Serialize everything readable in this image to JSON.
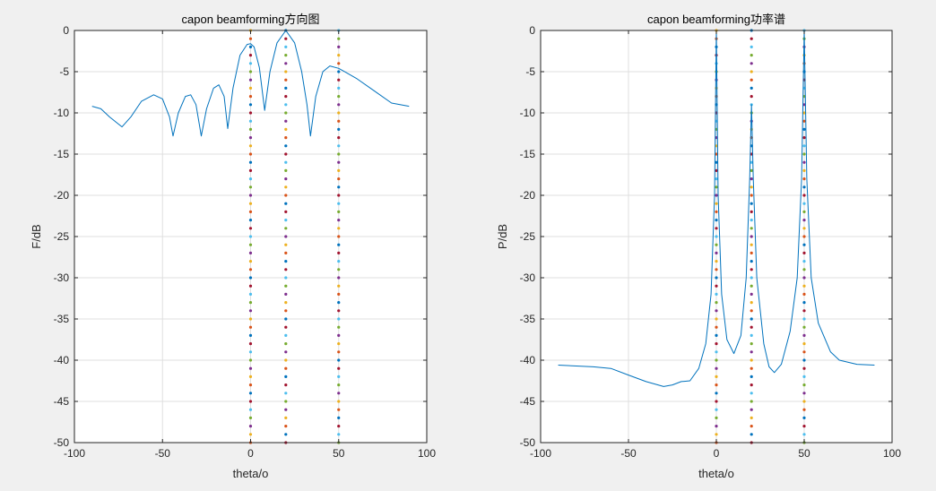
{
  "chart_data": [
    {
      "type": "line",
      "title": "capon beamforming方向图",
      "xlabel": "theta/o",
      "ylabel": "F/dB",
      "xlim": [
        -100,
        100
      ],
      "ylim": [
        -50,
        0
      ],
      "xticks": [
        -100,
        -50,
        0,
        50,
        100
      ],
      "yticks": [
        0,
        -5,
        -10,
        -15,
        -20,
        -25,
        -30,
        -35,
        -40,
        -45,
        -50
      ],
      "grid": true,
      "line_color": "#0072BD",
      "marker_lines_x": [
        0,
        20,
        50
      ],
      "x": [
        -90,
        -85,
        -80,
        -73,
        -68,
        -62,
        -55,
        -50,
        -46,
        -44,
        -41,
        -37,
        -34,
        -31,
        -28,
        -25,
        -21,
        -18,
        -15,
        -13,
        -10,
        -6,
        -2,
        0,
        2,
        5,
        8,
        11,
        15,
        20,
        25,
        29,
        32,
        34,
        37,
        41,
        45,
        50,
        60,
        70,
        80,
        90
      ],
      "y": [
        -9.2,
        -9.5,
        -10.5,
        -11.7,
        -10.5,
        -8.6,
        -7.8,
        -8.3,
        -10.5,
        -12.8,
        -10,
        -8,
        -7.8,
        -9,
        -12.8,
        -9.5,
        -7,
        -6.6,
        -8,
        -11.9,
        -7,
        -3,
        -1.7,
        -1.6,
        -2,
        -4.5,
        -9.7,
        -5,
        -1.5,
        0,
        -1.5,
        -5,
        -9,
        -12.8,
        -8,
        -5,
        -4.3,
        -4.6,
        -5.8,
        -7.3,
        -8.8,
        -9.2
      ]
    },
    {
      "type": "line",
      "title": "capon beamforming功率谱",
      "xlabel": "theta/o",
      "ylabel": "P/dB",
      "xlim": [
        -100,
        100
      ],
      "ylim": [
        -50,
        0
      ],
      "xticks": [
        -100,
        -50,
        0,
        50,
        100
      ],
      "yticks": [
        0,
        -5,
        -10,
        -15,
        -20,
        -25,
        -30,
        -35,
        -40,
        -45,
        -50
      ],
      "grid": true,
      "line_color": "#0072BD",
      "marker_lines_x": [
        0,
        20,
        50
      ],
      "x": [
        -90,
        -70,
        -60,
        -50,
        -40,
        -30,
        -25,
        -20,
        -15,
        -10,
        -6,
        -3,
        -1,
        0,
        1,
        3,
        6,
        10,
        14,
        17,
        19,
        20,
        21,
        23,
        27,
        30,
        33,
        37,
        42,
        46,
        48.5,
        50,
        51.5,
        54,
        58,
        65,
        70,
        80,
        90
      ],
      "y": [
        -40.6,
        -40.8,
        -41,
        -41.8,
        -42.6,
        -43.2,
        -43,
        -42.6,
        -42.5,
        -41,
        -38,
        -32,
        -20,
        0,
        -20,
        -32,
        -37.5,
        -39.2,
        -37,
        -30,
        -18,
        -9,
        -18,
        -30,
        -38,
        -40.8,
        -41.5,
        -40.5,
        -36.5,
        -30,
        -18,
        0,
        -18,
        -30,
        -35.5,
        -39,
        -40,
        -40.5,
        -40.6
      ]
    }
  ],
  "marker_colors": [
    "#EDB120",
    "#D95319",
    "#0072BD",
    "#A2142F",
    "#4DBEEE",
    "#77AC30",
    "#7E2F8E"
  ]
}
